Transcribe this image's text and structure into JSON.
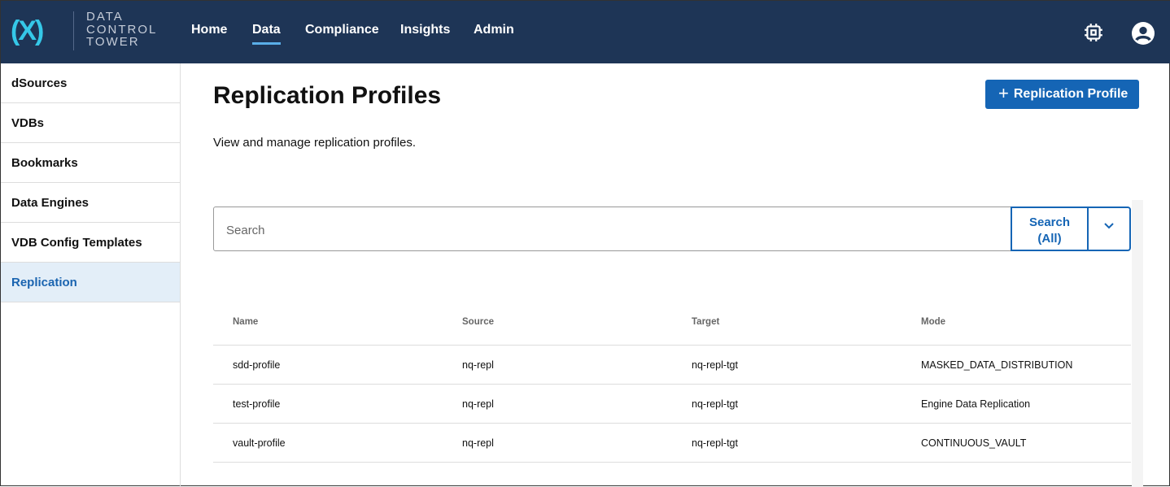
{
  "header": {
    "logo_text": [
      "DATA",
      "CONTROL",
      "TOWER"
    ],
    "nav": [
      "Home",
      "Data",
      "Compliance",
      "Insights",
      "Admin"
    ],
    "active_nav": "Data",
    "icons": [
      "chip-icon",
      "account-icon"
    ]
  },
  "sidebar": {
    "items": [
      "dSources",
      "VDBs",
      "Bookmarks",
      "Data Engines",
      "VDB Config Templates",
      "Replication"
    ],
    "selected": "Replication"
  },
  "main": {
    "title": "Replication Profiles",
    "subtitle": "View and manage replication profiles.",
    "add_button": "Replication Profile",
    "search": {
      "placeholder": "Search",
      "button_line1": "Search",
      "button_line2": "(All)"
    },
    "table": {
      "columns": [
        "Name",
        "Source",
        "Target",
        "Mode"
      ],
      "rows": [
        [
          "sdd-profile",
          "nq-repl",
          "nq-repl-tgt",
          "MASKED_DATA_DISTRIBUTION"
        ],
        [
          "test-profile",
          "nq-repl",
          "nq-repl-tgt",
          "Engine Data Replication"
        ],
        [
          "vault-profile",
          "nq-repl",
          "nq-repl-tgt",
          "CONTINUOUS_VAULT"
        ]
      ]
    }
  },
  "colors": {
    "header_bg": "#1e3556",
    "accent": "#1565b5",
    "logo": "#35c8e8"
  }
}
